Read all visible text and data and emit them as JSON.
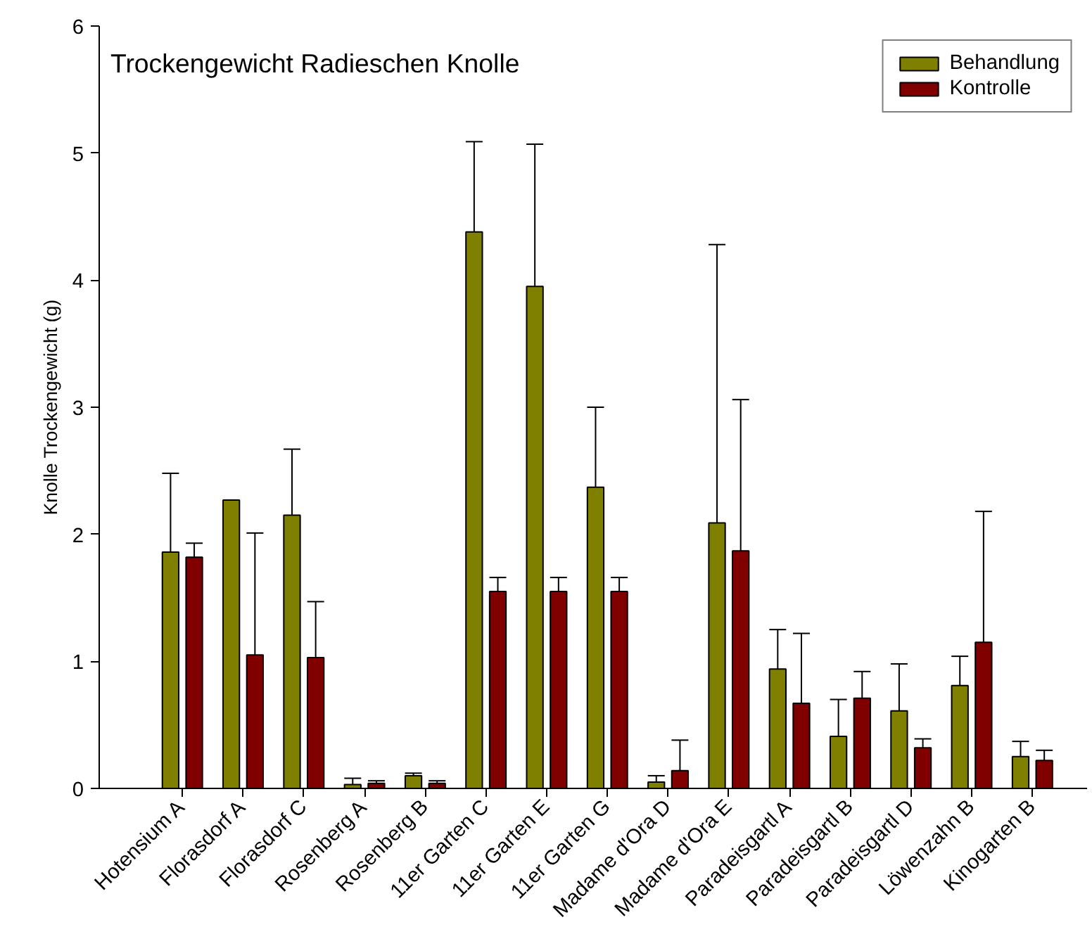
{
  "chart_data": {
    "type": "bar",
    "title": "Trockengewicht Radieschen Knolle",
    "ylabel": "Knolle Trockengewicht (g)",
    "categories": [
      "Hotensium A",
      "Florasdorf A",
      "Florasdorf C",
      "Rosenberg A",
      "Rosenberg B",
      "11er Garten C",
      "11er Garten E",
      "11er Garten G",
      "Madame d'Ora D",
      "Madame d'Ora E",
      "Paradeisgartl A",
      "Paradeisgartl B",
      "Paradeisgartl D",
      "Löwenzahn B",
      "Kinogarten B"
    ],
    "series": [
      {
        "name": "Behandlung",
        "color": "#808000",
        "values": [
          1.86,
          2.27,
          2.15,
          0.03,
          0.1,
          4.38,
          3.95,
          2.37,
          0.05,
          2.09,
          0.94,
          0.41,
          0.61,
          0.81,
          0.25
        ],
        "errors": [
          [
            1.86,
            2.48
          ],
          null,
          [
            2.15,
            2.67
          ],
          [
            0.03,
            0.08
          ],
          [
            0.1,
            0.12
          ],
          [
            4.38,
            5.09
          ],
          [
            3.95,
            5.07
          ],
          [
            2.37,
            3.0
          ],
          [
            0.05,
            0.1
          ],
          [
            2.09,
            4.28
          ],
          [
            0.94,
            1.25
          ],
          [
            0.41,
            0.7
          ],
          [
            0.61,
            0.98
          ],
          [
            0.81,
            1.04
          ],
          [
            0.25,
            0.37
          ]
        ]
      },
      {
        "name": "Kontrolle",
        "color": "#800000",
        "values": [
          1.82,
          1.05,
          1.03,
          0.04,
          0.04,
          1.55,
          1.55,
          1.55,
          0.14,
          1.87,
          0.67,
          0.71,
          0.32,
          1.15,
          0.22
        ],
        "errors": [
          [
            1.82,
            1.93
          ],
          [
            1.05,
            2.01
          ],
          [
            1.03,
            1.47
          ],
          [
            0.04,
            0.06
          ],
          [
            0.04,
            0.06
          ],
          [
            1.55,
            1.66
          ],
          [
            1.55,
            1.66
          ],
          [
            1.55,
            1.66
          ],
          [
            0.14,
            0.38
          ],
          [
            1.87,
            3.06
          ],
          [
            0.67,
            1.22
          ],
          [
            0.71,
            0.92
          ],
          [
            0.32,
            0.39
          ],
          [
            1.15,
            2.18
          ],
          [
            0.22,
            0.3
          ]
        ]
      }
    ],
    "ylim": [
      0,
      6
    ],
    "yticks": [
      0,
      1,
      2,
      3,
      4,
      5,
      6
    ],
    "grid": false,
    "legend": "top right"
  }
}
